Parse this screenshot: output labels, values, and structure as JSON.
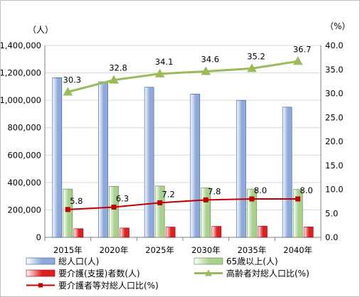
{
  "chart_data": {
    "type": "bar",
    "categories": [
      "2015年",
      "2020年",
      "2025年",
      "2030年",
      "2035年",
      "2040年"
    ],
    "y_left": {
      "unit": "（人）",
      "lim": [
        0,
        1400000
      ],
      "ticks": [
        0,
        200000,
        400000,
        600000,
        800000,
        1000000,
        1200000,
        1400000
      ],
      "tick_labels": [
        "0",
        "200,000",
        "400,000",
        "600,000",
        "800,000",
        "1,000,000",
        "1,200,000",
        "1,400,000"
      ]
    },
    "y_right": {
      "unit": "（%）",
      "lim": [
        0,
        40
      ],
      "ticks": [
        0,
        5,
        10,
        15,
        20,
        25,
        30,
        35,
        40
      ],
      "tick_labels": [
        "0.0",
        "5.0",
        "10.0",
        "15.0",
        "20.0",
        "25.0",
        "30.0",
        "35.0",
        "40.0"
      ]
    },
    "grid": "horizontal",
    "legend_position": "bottom",
    "bar_series": [
      {
        "name": "総人口(人)",
        "axis": "left",
        "values": [
          1165000,
          1135000,
          1095000,
          1045000,
          1000000,
          950000
        ],
        "color": "#8eaadb",
        "edge": "#2f5597"
      },
      {
        "name": "65歳以上(人)",
        "axis": "left",
        "values": [
          352000,
          372000,
          374000,
          362000,
          352000,
          349000
        ],
        "color": "#a9d18e",
        "edge": "#548235"
      },
      {
        "name": "要介護(支援)者数(人)",
        "axis": "left",
        "values": [
          63000,
          68000,
          75000,
          80000,
          82000,
          76000
        ],
        "color": "#e02020",
        "edge": "#8b0000"
      }
    ],
    "line_series": [
      {
        "name": "高齢者対総人口比(%)",
        "axis": "right",
        "values": [
          30.3,
          32.8,
          34.1,
          34.6,
          35.2,
          36.7
        ],
        "labels": [
          "30.3",
          "32.8",
          "34.1",
          "34.6",
          "35.2",
          "36.7"
        ],
        "color": "#9bbb59",
        "marker": "triangle"
      },
      {
        "name": "要介護者等対総人口比(%)",
        "axis": "right",
        "values": [
          5.8,
          6.3,
          7.2,
          7.8,
          8.0,
          8.0
        ],
        "labels": [
          "5.8",
          "6.3",
          "7.2",
          "7.8",
          "8.0",
          "8.0"
        ],
        "color": "#c00000",
        "marker": "square"
      }
    ]
  }
}
